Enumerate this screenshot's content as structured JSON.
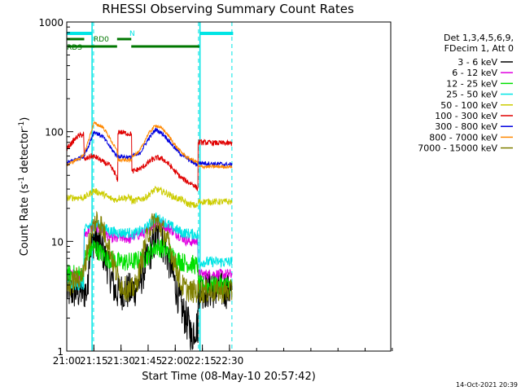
{
  "chart_data": {
    "type": "line",
    "title": "RHESSI Observing Summary Count Rates",
    "xlabel": "Start Time (08-May-10 20:57:42)",
    "ylabel": "Count Rate (s⁻¹ detector⁻¹)",
    "ylabel_main": "Count Rate (s",
    "ylabel_sup1": "-1",
    "ylabel_mid": " detector",
    "ylabel_sup2": "-1",
    "ylabel_end": ")",
    "yscale": "log",
    "xlim": [
      1260,
      2335
    ],
    "ylim": [
      1,
      1000
    ],
    "x_ticks": [
      1260,
      1350,
      1440,
      1530,
      1620,
      1710,
      1800,
      1890,
      1980,
      2070,
      2160,
      2250,
      2340
    ],
    "x_ticks_major": [
      {
        "value": 1260,
        "label": "21:00"
      },
      {
        "value": 1350,
        "label": "21:15"
      },
      {
        "value": 1440,
        "label": "21:30"
      },
      {
        "value": 1530,
        "label": "21:45"
      },
      {
        "value": 1620,
        "label": "22:00"
      },
      {
        "value": 1710,
        "label": "22:15"
      },
      {
        "value": 1800,
        "label": "22:30"
      }
    ],
    "y_ticks": [
      {
        "value": 1,
        "label": "1"
      },
      {
        "value": 10,
        "label": "10"
      },
      {
        "value": 100,
        "label": "100"
      },
      {
        "value": 1000,
        "label": "1000"
      }
    ],
    "grid": false,
    "legend_position": "right",
    "legend_header": [
      "Det 1,3,4,5,6,9,",
      "FDecim 1, Att 0"
    ],
    "stamp": "14-Oct-2021 20:39",
    "markers": {
      "vlines": [
        1349,
        1697,
        1808
      ],
      "vline_color": "#00e5e5",
      "night_label": "N",
      "rd0_label": "RD0",
      "rds_label": "RDS",
      "night_segments": [
        [
          1260,
          1344
        ],
        [
          1702,
          1812
        ]
      ],
      "night_bracket_x": [
        1344,
        1702
      ],
      "rd0_segments": [
        [
          1260,
          1318
        ],
        [
          1427,
          1474
        ]
      ],
      "rds_segments": [
        [
          1265,
          1427
        ],
        [
          1474,
          1700
        ]
      ]
    },
    "series": [
      {
        "name": "3 - 6 keV",
        "color": "#000000",
        "noise": 0.35,
        "points": [
          [
            1261,
            3.5
          ],
          [
            1330,
            3.5
          ],
          [
            1333,
            8.0
          ],
          [
            1350,
            10.5
          ],
          [
            1365,
            10.0
          ],
          [
            1380,
            8.0
          ],
          [
            1395,
            6.0
          ],
          [
            1410,
            4.5
          ],
          [
            1420,
            3.5
          ],
          [
            1470,
            3.5
          ],
          [
            1490,
            3.8
          ],
          [
            1505,
            4.5
          ],
          [
            1525,
            6.5
          ],
          [
            1545,
            9.0
          ],
          [
            1560,
            11.0
          ],
          [
            1575,
            10.0
          ],
          [
            1590,
            8.0
          ],
          [
            1605,
            6.0
          ],
          [
            1620,
            4.0
          ],
          [
            1640,
            2.5
          ],
          [
            1660,
            1.8
          ],
          [
            1670,
            1.6
          ],
          [
            1675,
            1.2
          ],
          [
            1680,
            1.6
          ],
          [
            1695,
            1.7
          ],
          [
            1696,
            3.6
          ],
          [
            1808,
            3.6
          ]
        ]
      },
      {
        "name": "6 - 12 keV",
        "color": "#e000e0",
        "noise": 0.1,
        "points": [
          [
            1261,
            5.0
          ],
          [
            1316,
            5.0
          ],
          [
            1318,
            11.5
          ],
          [
            1350,
            14.0
          ],
          [
            1380,
            12.5
          ],
          [
            1400,
            11.0
          ],
          [
            1429,
            10.5
          ],
          [
            1430,
            11.0
          ],
          [
            1475,
            10.5
          ],
          [
            1476,
            11.0
          ],
          [
            1520,
            12.0
          ],
          [
            1555,
            15.0
          ],
          [
            1585,
            14.0
          ],
          [
            1620,
            12.0
          ],
          [
            1642,
            11.0
          ],
          [
            1660,
            10.0
          ],
          [
            1695,
            10.0
          ],
          [
            1696,
            5.0
          ],
          [
            1808,
            5.0
          ]
        ]
      },
      {
        "name": "12 - 25 keV",
        "color": "#00e000",
        "noise": 0.18,
        "points": [
          [
            1261,
            5.0
          ],
          [
            1316,
            5.0
          ],
          [
            1318,
            7.0
          ],
          [
            1350,
            9.0
          ],
          [
            1370,
            8.0
          ],
          [
            1395,
            7.0
          ],
          [
            1429,
            6.5
          ],
          [
            1430,
            6.5
          ],
          [
            1475,
            6.5
          ],
          [
            1476,
            6.5
          ],
          [
            1520,
            7.0
          ],
          [
            1555,
            9.0
          ],
          [
            1585,
            8.5
          ],
          [
            1620,
            7.0
          ],
          [
            1642,
            6.5
          ],
          [
            1695,
            6.0
          ],
          [
            1696,
            4.0
          ],
          [
            1808,
            4.0
          ]
        ]
      },
      {
        "name": "25 - 50 keV",
        "color": "#00e5e5",
        "noise": 0.1,
        "points": [
          [
            1261,
            4.0
          ],
          [
            1316,
            4.0
          ],
          [
            1318,
            12.5
          ],
          [
            1350,
            15.0
          ],
          [
            1380,
            13.5
          ],
          [
            1400,
            12.5
          ],
          [
            1429,
            12.0
          ],
          [
            1430,
            12.0
          ],
          [
            1475,
            12.0
          ],
          [
            1476,
            11.5
          ],
          [
            1520,
            13.0
          ],
          [
            1555,
            16.5
          ],
          [
            1585,
            15.0
          ],
          [
            1620,
            13.0
          ],
          [
            1642,
            12.0
          ],
          [
            1695,
            11.5
          ],
          [
            1696,
            6.5
          ],
          [
            1808,
            6.5
          ]
        ]
      },
      {
        "name": "50 - 100 keV",
        "color": "#cccc00",
        "noise": 0.06,
        "points": [
          [
            1261,
            25
          ],
          [
            1316,
            25
          ],
          [
            1318,
            25
          ],
          [
            1350,
            29
          ],
          [
            1380,
            27
          ],
          [
            1400,
            25
          ],
          [
            1420,
            24
          ],
          [
            1429,
            24
          ],
          [
            1430,
            25
          ],
          [
            1475,
            25
          ],
          [
            1476,
            23
          ],
          [
            1520,
            25
          ],
          [
            1555,
            30
          ],
          [
            1585,
            28
          ],
          [
            1620,
            25
          ],
          [
            1642,
            24
          ],
          [
            1660,
            22
          ],
          [
            1695,
            21
          ],
          [
            1696,
            23
          ],
          [
            1808,
            23
          ]
        ]
      },
      {
        "name": "100 - 300 keV",
        "color": "#e00000",
        "noise": 0.05,
        "points": [
          [
            1261,
            70
          ],
          [
            1278,
            80
          ],
          [
            1295,
            90
          ],
          [
            1316,
            95
          ],
          [
            1318,
            55
          ],
          [
            1340,
            60
          ],
          [
            1360,
            58
          ],
          [
            1380,
            53
          ],
          [
            1400,
            50
          ],
          [
            1420,
            42
          ],
          [
            1429,
            35
          ],
          [
            1430,
            100
          ],
          [
            1475,
            95
          ],
          [
            1476,
            43
          ],
          [
            1510,
            47
          ],
          [
            1540,
            55
          ],
          [
            1560,
            58
          ],
          [
            1580,
            56
          ],
          [
            1600,
            50
          ],
          [
            1620,
            43
          ],
          [
            1640,
            38
          ],
          [
            1660,
            35
          ],
          [
            1680,
            33
          ],
          [
            1695,
            30
          ],
          [
            1696,
            80
          ],
          [
            1808,
            78
          ]
        ]
      },
      {
        "name": "300 - 800 keV",
        "color": "#0000e0",
        "noise": 0.04,
        "points": [
          [
            1261,
            52
          ],
          [
            1290,
            56
          ],
          [
            1316,
            60
          ],
          [
            1330,
            72
          ],
          [
            1350,
            100
          ],
          [
            1380,
            90
          ],
          [
            1400,
            75
          ],
          [
            1420,
            63
          ],
          [
            1429,
            60
          ],
          [
            1430,
            60
          ],
          [
            1475,
            58
          ],
          [
            1476,
            60
          ],
          [
            1500,
            62
          ],
          [
            1530,
            85
          ],
          [
            1555,
            105
          ],
          [
            1580,
            95
          ],
          [
            1600,
            82
          ],
          [
            1620,
            70
          ],
          [
            1640,
            62
          ],
          [
            1660,
            57
          ],
          [
            1680,
            52
          ],
          [
            1695,
            50
          ],
          [
            1696,
            52
          ],
          [
            1808,
            50
          ]
        ]
      },
      {
        "name": "800 - 7000 keV",
        "color": "#ff8800",
        "noise": 0.03,
        "points": [
          [
            1261,
            50
          ],
          [
            1290,
            55
          ],
          [
            1316,
            60
          ],
          [
            1330,
            80
          ],
          [
            1350,
            120
          ],
          [
            1380,
            110
          ],
          [
            1400,
            90
          ],
          [
            1420,
            72
          ],
          [
            1429,
            65
          ],
          [
            1430,
            55
          ],
          [
            1475,
            55
          ],
          [
            1476,
            60
          ],
          [
            1500,
            65
          ],
          [
            1530,
            95
          ],
          [
            1555,
            115
          ],
          [
            1580,
            105
          ],
          [
            1600,
            90
          ],
          [
            1620,
            75
          ],
          [
            1640,
            65
          ],
          [
            1660,
            58
          ],
          [
            1680,
            55
          ],
          [
            1695,
            52
          ],
          [
            1696,
            48
          ],
          [
            1808,
            48
          ]
        ]
      },
      {
        "name": "7000 - 15000 keV",
        "color": "#808000",
        "noise": 0.22,
        "points": [
          [
            1261,
            3.8
          ],
          [
            1290,
            4.5
          ],
          [
            1316,
            5.0
          ],
          [
            1330,
            9.0
          ],
          [
            1345,
            13.0
          ],
          [
            1360,
            16.0
          ],
          [
            1375,
            14.0
          ],
          [
            1390,
            11.0
          ],
          [
            1405,
            8.0
          ],
          [
            1420,
            5.5
          ],
          [
            1440,
            4.0
          ],
          [
            1470,
            3.5
          ],
          [
            1490,
            4.0
          ],
          [
            1505,
            6.0
          ],
          [
            1520,
            9.5
          ],
          [
            1535,
            13.0
          ],
          [
            1550,
            15.5
          ],
          [
            1565,
            14.5
          ],
          [
            1580,
            12.5
          ],
          [
            1595,
            10.0
          ],
          [
            1610,
            7.5
          ],
          [
            1625,
            5.5
          ],
          [
            1640,
            4.0
          ],
          [
            1670,
            3.5
          ],
          [
            1695,
            3.5
          ],
          [
            1696,
            3.5
          ],
          [
            1808,
            3.5
          ]
        ]
      }
    ]
  }
}
